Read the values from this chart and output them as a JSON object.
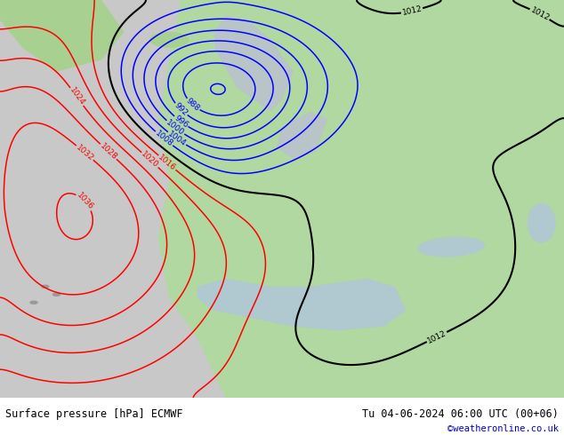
{
  "title_left": "Surface pressure [hPa] ECMWF",
  "title_right": "Tu 04-06-2024 06:00 UTC (00+06)",
  "credit": "©weatheronline.co.uk",
  "footer_bg": "#d0d0d0",
  "figsize": [
    6.34,
    4.9
  ],
  "dpi": 100,
  "ocean_color": "#c8c8c8",
  "land_color": "#b0d8a0",
  "levels_step": 4,
  "p_min": 960,
  "p_max": 1044
}
